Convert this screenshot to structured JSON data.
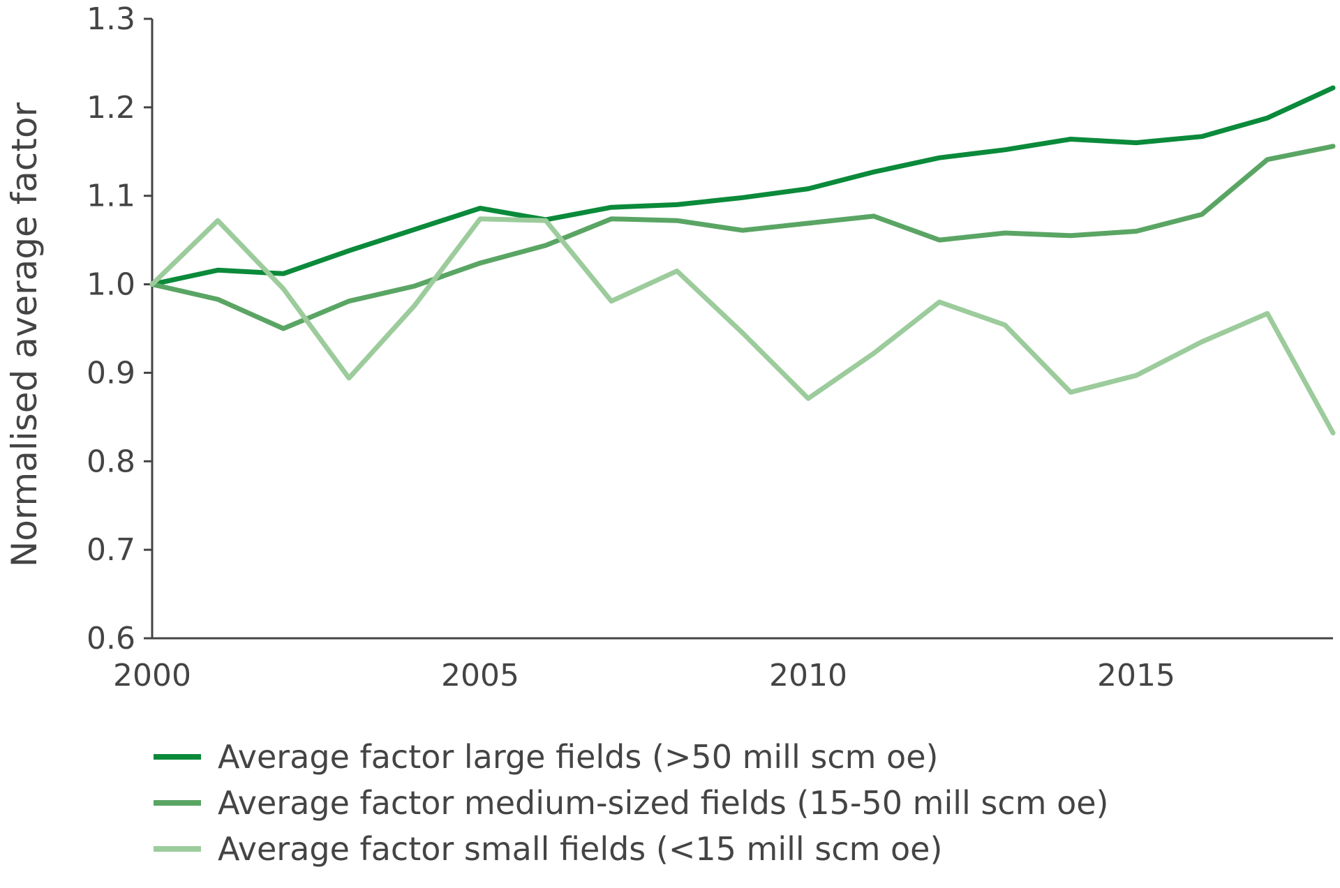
{
  "chart_data": {
    "type": "line",
    "title": "",
    "xlabel": "",
    "ylabel": "Normalised average factor",
    "xlim": [
      2000,
      2018
    ],
    "ylim": [
      0.6,
      1.3
    ],
    "yticks": [
      "0.6",
      "0.7",
      "0.8",
      "0.9",
      "1.0",
      "1.1",
      "1.2",
      "1.3"
    ],
    "xticks": [
      "2000",
      "2005",
      "2010",
      "2015"
    ],
    "x": [
      2000,
      2001,
      2002,
      2003,
      2004,
      2005,
      2006,
      2007,
      2008,
      2009,
      2010,
      2011,
      2012,
      2013,
      2014,
      2015,
      2016,
      2017,
      2018
    ],
    "grid": false,
    "legend_position": "bottom",
    "series": [
      {
        "name": "Average factor large fields (>50 mill scm oe)",
        "color": "#0a8a3a",
        "values": [
          1.0,
          1.016,
          1.012,
          1.038,
          1.062,
          1.086,
          1.073,
          1.087,
          1.09,
          1.098,
          1.108,
          1.127,
          1.143,
          1.152,
          1.164,
          1.16,
          1.167,
          1.188,
          1.222
        ]
      },
      {
        "name": "Average factor medium-sized fields (15-50 mill scm oe)",
        "color": "#5aa564",
        "values": [
          1.0,
          0.983,
          0.95,
          0.981,
          0.998,
          1.024,
          1.044,
          1.074,
          1.072,
          1.061,
          1.069,
          1.077,
          1.05,
          1.058,
          1.055,
          1.06,
          1.079,
          1.141,
          1.156
        ]
      },
      {
        "name": "Average factor small fields (<15 mill scm oe)",
        "color": "#9ccb9c",
        "values": [
          1.0,
          1.072,
          0.995,
          0.894,
          0.976,
          1.074,
          1.072,
          0.981,
          1.015,
          0.945,
          0.871,
          0.922,
          0.98,
          0.954,
          0.878,
          0.897,
          0.935,
          0.967,
          0.832
        ]
      }
    ]
  }
}
